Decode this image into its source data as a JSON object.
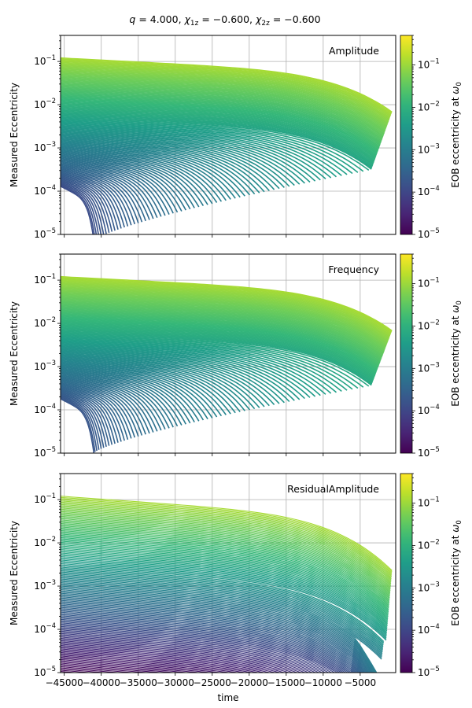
{
  "figure": {
    "title": "q = 4.000, χ1z = −0.600, χ2z = −0.600",
    "xlabel": "time",
    "ylabel": "Measured Eccentricity",
    "colorbar_label": "EOB eccentricity at ω0"
  },
  "chart_data": [
    {
      "type": "line",
      "panel_label": "Amplitude",
      "xlabel": "",
      "ylabel": "Measured Eccentricity",
      "xlim": [
        -45500,
        -200
      ],
      "ylim": [
        1e-05,
        0.4
      ],
      "yscale": "log",
      "grid": true,
      "xticks": [
        -45000,
        -40000,
        -35000,
        -30000,
        -25000,
        -20000,
        -15000,
        -10000,
        -5000
      ],
      "yticks": [
        1e-05,
        0.0001,
        0.001,
        0.01,
        0.1
      ],
      "ytick_labels": [
        "10−5",
        "10−4",
        "10−3",
        "10−2",
        "10−1"
      ],
      "colormap": "viridis",
      "color_range": [
        1e-05,
        0.5
      ],
      "series_summary": {
        "count_approx": 120,
        "initial_eccentricity_range": [
          0.00013,
          0.12
        ],
        "note_shape": "each curve decays slowly then drops steeply near its end time"
      },
      "sample_series": [
        {
          "e0": 0.12,
          "x": [
            -45000,
            -30000,
            -15000,
            -5000,
            -700
          ],
          "y": [
            0.12,
            0.1,
            0.075,
            0.045,
            0.02
          ]
        },
        {
          "e0": 0.01,
          "x": [
            -45000,
            -30000,
            -15000,
            -5000,
            -1500
          ],
          "y": [
            0.0105,
            0.0085,
            0.0062,
            0.004,
            0.002
          ]
        },
        {
          "e0": 0.0015,
          "x": [
            -45000,
            -35000,
            -25000,
            -18000
          ],
          "y": [
            0.0015,
            0.0012,
            0.0009,
            0.0005
          ]
        },
        {
          "e0": 0.0003,
          "x": [
            -45000,
            -43000,
            -41000
          ],
          "y": [
            0.0003,
            0.00022,
            0.00013
          ]
        }
      ]
    },
    {
      "type": "line",
      "panel_label": "Frequency",
      "xlabel": "",
      "ylabel": "Measured Eccentricity",
      "xlim": [
        -45500,
        -200
      ],
      "ylim": [
        1e-05,
        0.4
      ],
      "yscale": "log",
      "grid": true,
      "xticks": [
        -45000,
        -40000,
        -35000,
        -30000,
        -25000,
        -20000,
        -15000,
        -10000,
        -5000
      ],
      "yticks": [
        1e-05,
        0.0001,
        0.001,
        0.01,
        0.1
      ],
      "ytick_labels": [
        "10−5",
        "10−4",
        "10−3",
        "10−2",
        "10−1"
      ],
      "colormap": "viridis",
      "color_range": [
        1e-05,
        0.5
      ],
      "series_summary": {
        "count_approx": 120,
        "initial_eccentricity_range": [
          0.00018,
          0.12
        ],
        "note_shape": "each curve decays slowly then drops steeply near its end time"
      },
      "sample_series": [
        {
          "e0": 0.12,
          "x": [
            -45000,
            -30000,
            -15000,
            -5000,
            -700
          ],
          "y": [
            0.12,
            0.1,
            0.075,
            0.045,
            0.02
          ]
        },
        {
          "e0": 0.0003,
          "x": [
            -45000,
            -43000,
            -41000
          ],
          "y": [
            0.0003,
            0.00025,
            0.00017
          ]
        }
      ]
    },
    {
      "type": "line",
      "panel_label": "ResidualAmplitude",
      "xlabel": "time",
      "ylabel": "Measured Eccentricity",
      "xlim": [
        -45500,
        -200
      ],
      "ylim": [
        1e-05,
        0.4
      ],
      "yscale": "log",
      "grid": true,
      "xticks": [
        -45000,
        -40000,
        -35000,
        -30000,
        -25000,
        -20000,
        -15000,
        -10000,
        -5000
      ],
      "xtick_labels": [
        "−45000",
        "−40000",
        "−35000",
        "−30000",
        "−25000",
        "−20000",
        "−15000",
        "−10000",
        "−5000"
      ],
      "yticks": [
        1e-05,
        0.0001,
        0.001,
        0.01,
        0.1
      ],
      "ytick_labels": [
        "10−5",
        "10−4",
        "10−3",
        "10−2",
        "10−1"
      ],
      "colormap": "viridis",
      "color_range": [
        1e-05,
        0.5
      ],
      "series_summary": {
        "count_approx": 150,
        "initial_eccentricity_range": [
          1e-05,
          0.12
        ],
        "note_shape": "curves extend down to 1e-5 and fan out near merger"
      }
    }
  ],
  "colorbar": {
    "ticks": [
      1e-05,
      0.0001,
      0.001,
      0.01,
      0.1
    ],
    "tick_labels": [
      "10−5",
      "10−4",
      "10−3",
      "10−2",
      "10−1"
    ],
    "label": "EOB eccentricity at ω0",
    "range": [
      1e-05,
      0.5
    ]
  }
}
